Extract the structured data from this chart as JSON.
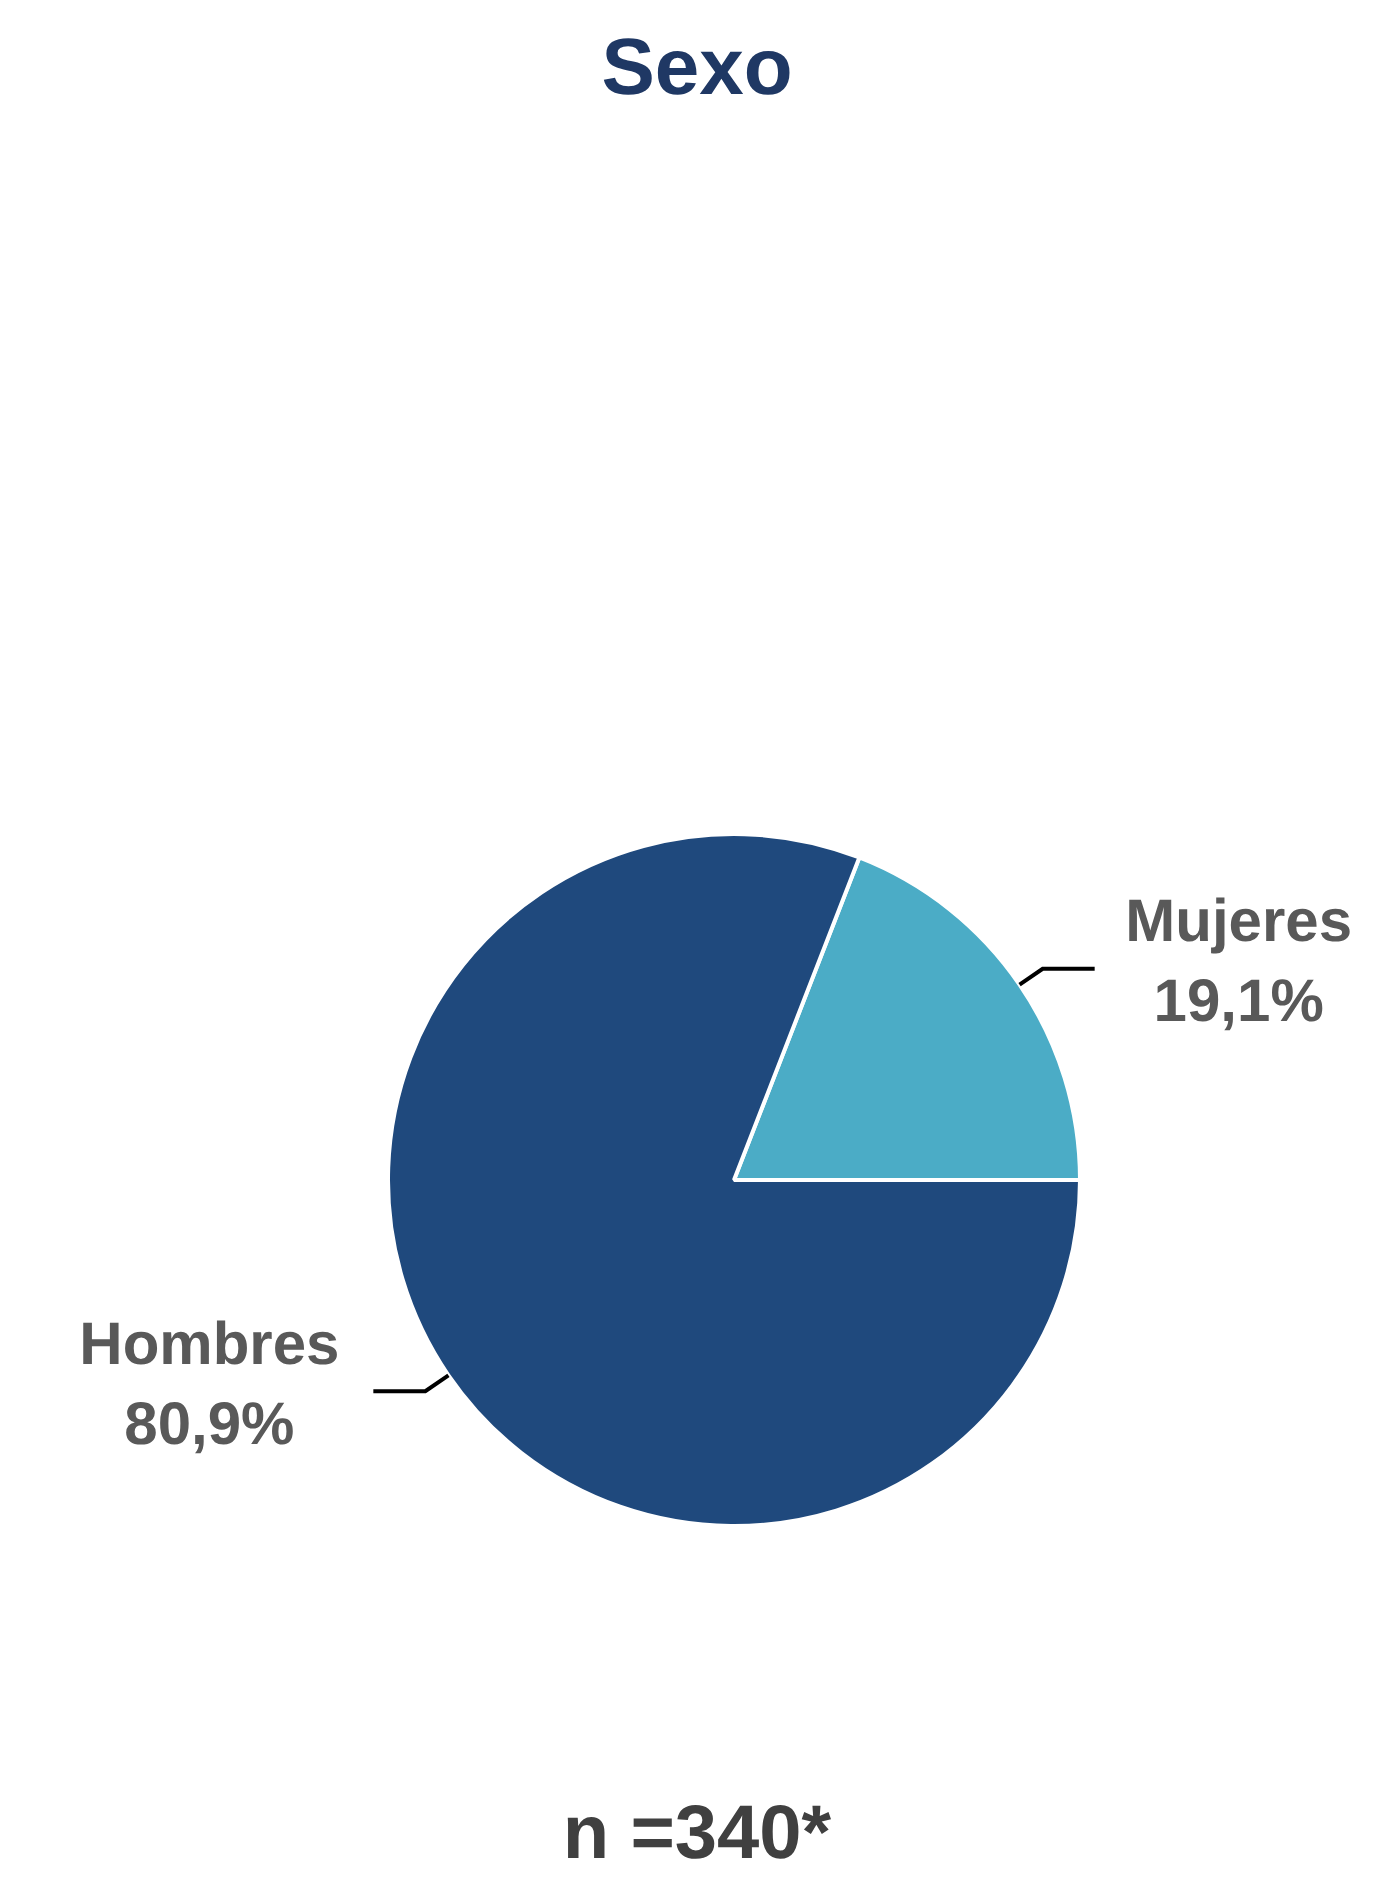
{
  "chart_data": {
    "type": "pie",
    "title": "Sexo",
    "categories": [
      "Mujeres",
      "Hombres"
    ],
    "values": [
      19.1,
      80.9
    ],
    "colors": [
      "#4bacc6",
      "#1f497d"
    ],
    "value_labels": [
      "19,1%",
      "80,9%"
    ],
    "legend": false,
    "annotations": [
      "n =340*"
    ]
  }
}
